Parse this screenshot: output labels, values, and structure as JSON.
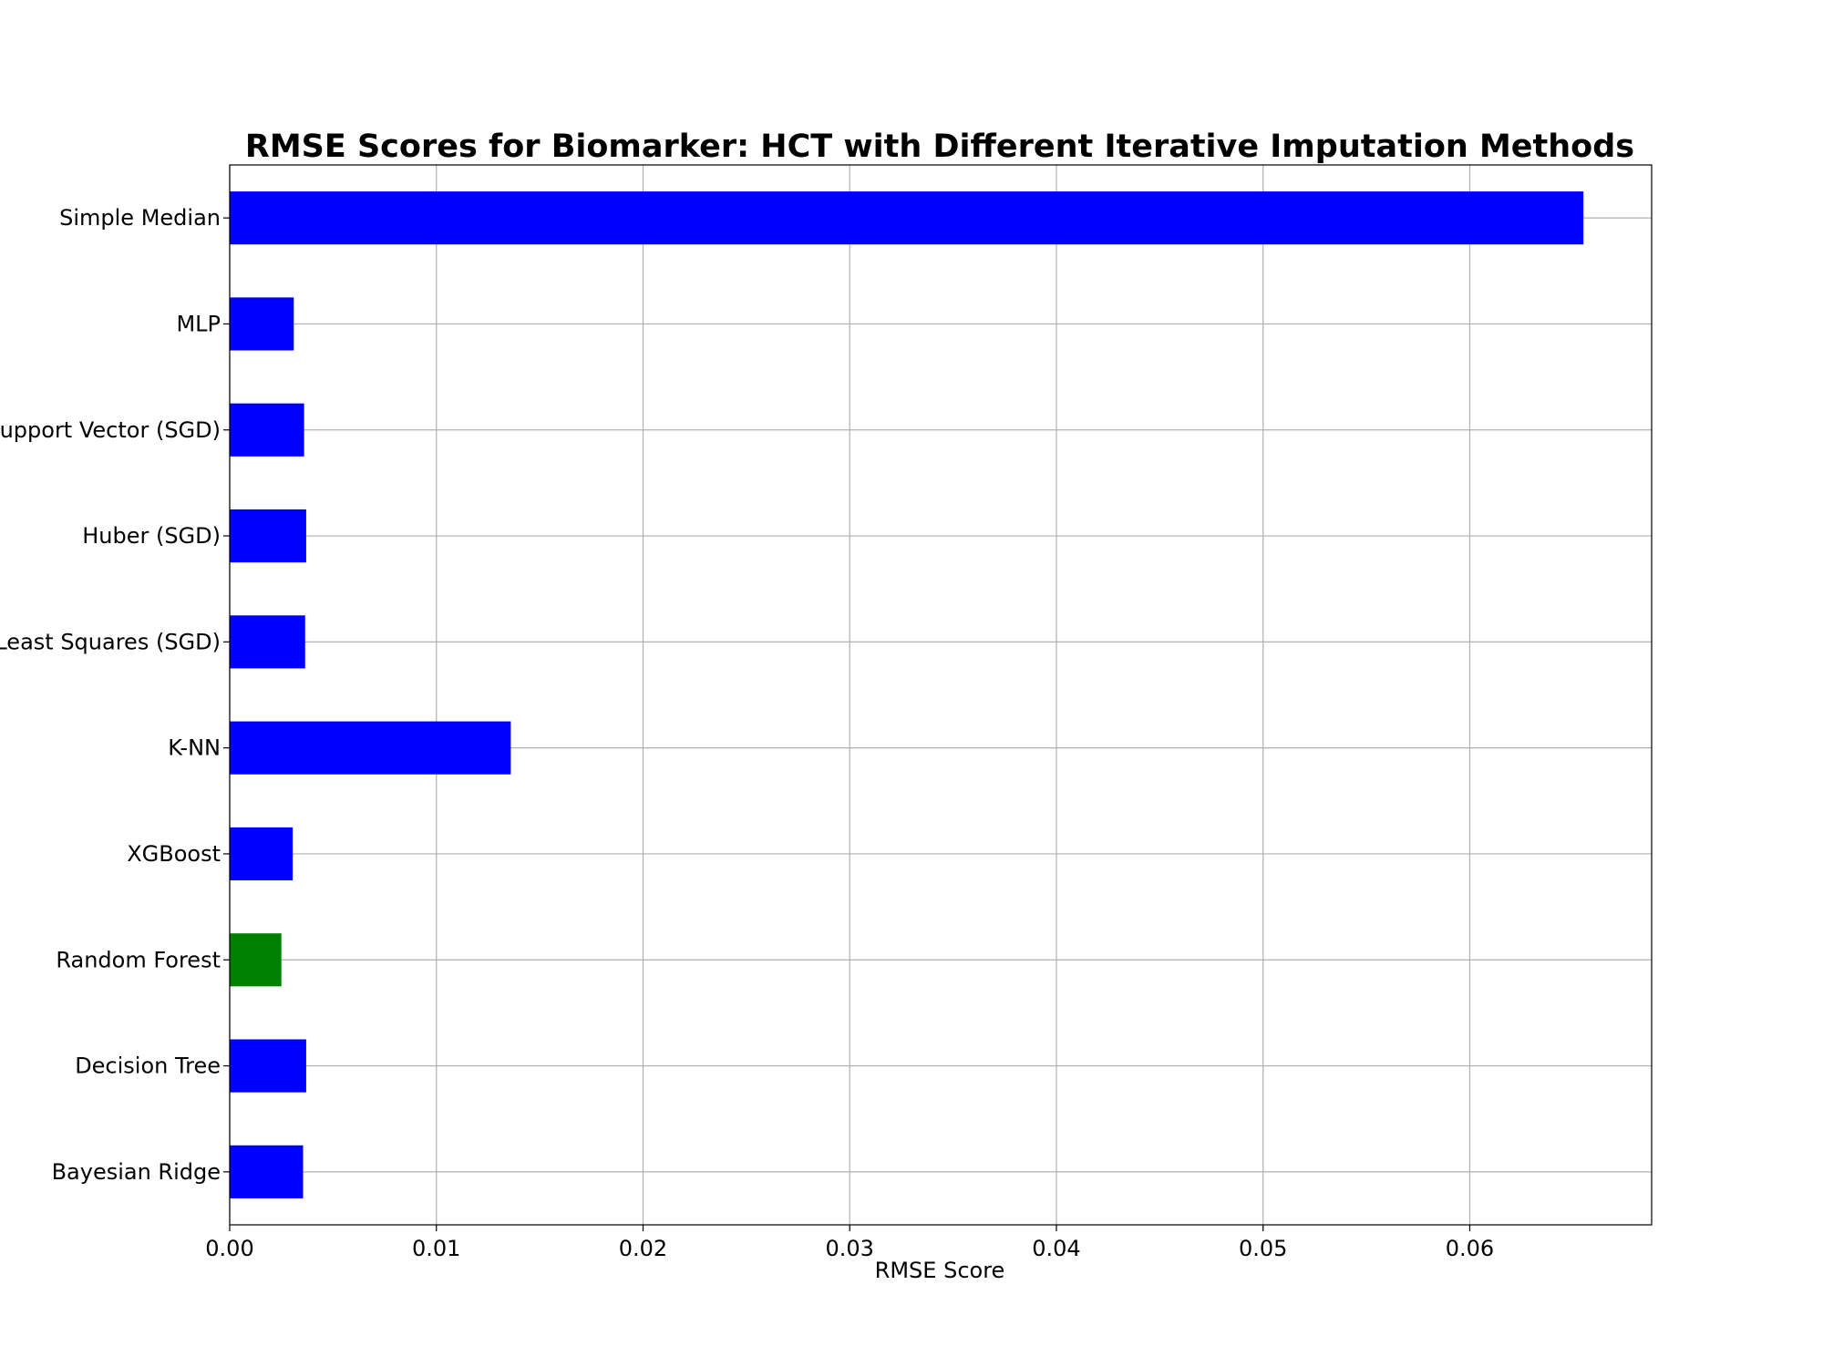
{
  "chart_data": {
    "type": "bar",
    "orientation": "horizontal",
    "title": "RMSE Scores for Biomarker: HCT with Different Iterative Imputation Methods",
    "xlabel": "RMSE Score",
    "ylabel": "",
    "xlim": [
      0,
      0.0688
    ],
    "xticks": [
      0.0,
      0.01,
      0.02,
      0.03,
      0.04,
      0.05,
      0.06
    ],
    "xtick_labels": [
      "0.00",
      "0.01",
      "0.02",
      "0.03",
      "0.04",
      "0.05",
      "0.06"
    ],
    "grid": true,
    "categories": [
      "Simple Median",
      "MLP",
      "Support Vector (SGD)",
      "Huber (SGD)",
      "Least Squares (SGD)",
      "K-NN",
      "XGBoost",
      "Random Forest",
      "Decision Tree",
      "Bayesian Ridge"
    ],
    "values": [
      0.0655,
      0.0031,
      0.0036,
      0.0037,
      0.00365,
      0.0136,
      0.00305,
      0.0025,
      0.0037,
      0.00355
    ],
    "colors": [
      "#0000ff",
      "#0000ff",
      "#0000ff",
      "#0000ff",
      "#0000ff",
      "#0000ff",
      "#0000ff",
      "#008000",
      "#0000ff",
      "#0000ff"
    ]
  }
}
